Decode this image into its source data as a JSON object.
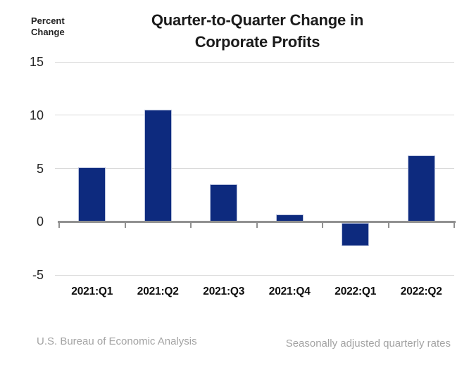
{
  "chart_data": {
    "type": "bar",
    "title": "Quarter-to-Quarter Change in\nCorporate Profits",
    "ylabel": "Percent\nChange",
    "xlabel": "",
    "categories": [
      "2021:Q1",
      "2021:Q2",
      "2021:Q3",
      "2021:Q4",
      "2022:Q1",
      "2022:Q2"
    ],
    "values": [
      5.1,
      10.5,
      3.5,
      0.7,
      -2.2,
      6.2
    ],
    "ylim": [
      -5,
      15
    ],
    "yticks": [
      15,
      10,
      5,
      0,
      -5
    ],
    "grid": "horizontal",
    "legend": "none",
    "bar_color": "#0d2a7e",
    "axis_color": "#909090",
    "gridline_color": "#d9d9d9"
  },
  "footer": {
    "source": "U.S. Bureau of Economic Analysis",
    "note": "Seasonally adjusted quarterly rates"
  }
}
